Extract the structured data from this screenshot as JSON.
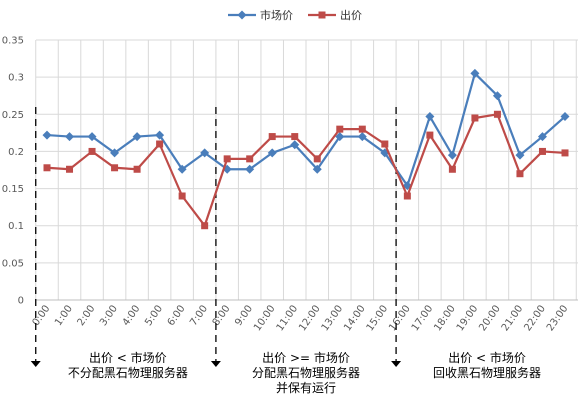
{
  "chart_data": {
    "type": "line",
    "categories": [
      "0:00",
      "1:00",
      "2:00",
      "3:00",
      "4:00",
      "5:00",
      "6:00",
      "7:00",
      "8:00",
      "9:00",
      "10:00",
      "11:00",
      "12:00",
      "13:00",
      "14:00",
      "15:00",
      "16:00",
      "17:00",
      "18:00",
      "19:00",
      "20:00",
      "21:00",
      "22:00",
      "23:00"
    ],
    "series": [
      {
        "name": "市场价",
        "color": "#4A7EBB",
        "marker": "diamond",
        "values": [
          0.222,
          0.22,
          0.22,
          0.198,
          0.22,
          0.222,
          0.176,
          0.198,
          0.176,
          0.176,
          0.198,
          0.209,
          0.176,
          0.22,
          0.22,
          0.198,
          0.154,
          0.247,
          0.195,
          0.305,
          0.275,
          0.195,
          0.22,
          0.247
        ]
      },
      {
        "name": "出价",
        "color": "#BE4B48",
        "marker": "square",
        "values": [
          0.178,
          0.176,
          0.2,
          0.178,
          0.176,
          0.21,
          0.14,
          0.1,
          0.19,
          0.19,
          0.22,
          0.22,
          0.19,
          0.23,
          0.23,
          0.21,
          0.14,
          0.222,
          0.176,
          0.245,
          0.25,
          0.17,
          0.2,
          0.198
        ]
      }
    ],
    "ylim": [
      0,
      0.35
    ],
    "yticks": [
      0,
      0.05,
      0.1,
      0.15,
      0.2,
      0.25,
      0.3,
      0.35
    ],
    "ytick_labels": [
      "0",
      "0.05",
      "0.1",
      "0.15",
      "0.2",
      "0.25",
      "0.3",
      "0.35"
    ],
    "grid": true,
    "legend_position": "top",
    "phase_dividers": [
      {
        "at_category": 0
      },
      {
        "at_category": 8
      },
      {
        "at_category": 16
      }
    ],
    "annotations": [
      {
        "lines": [
          "出价 < 市场价",
          "不分配黑石物理服务器"
        ]
      },
      {
        "lines": [
          "出价 >= 市场价",
          "分配黑石物理服务器",
          "并保有运行"
        ]
      },
      {
        "lines": [
          "出价 < 市场价",
          "回收黑石物理服务器"
        ]
      }
    ]
  }
}
